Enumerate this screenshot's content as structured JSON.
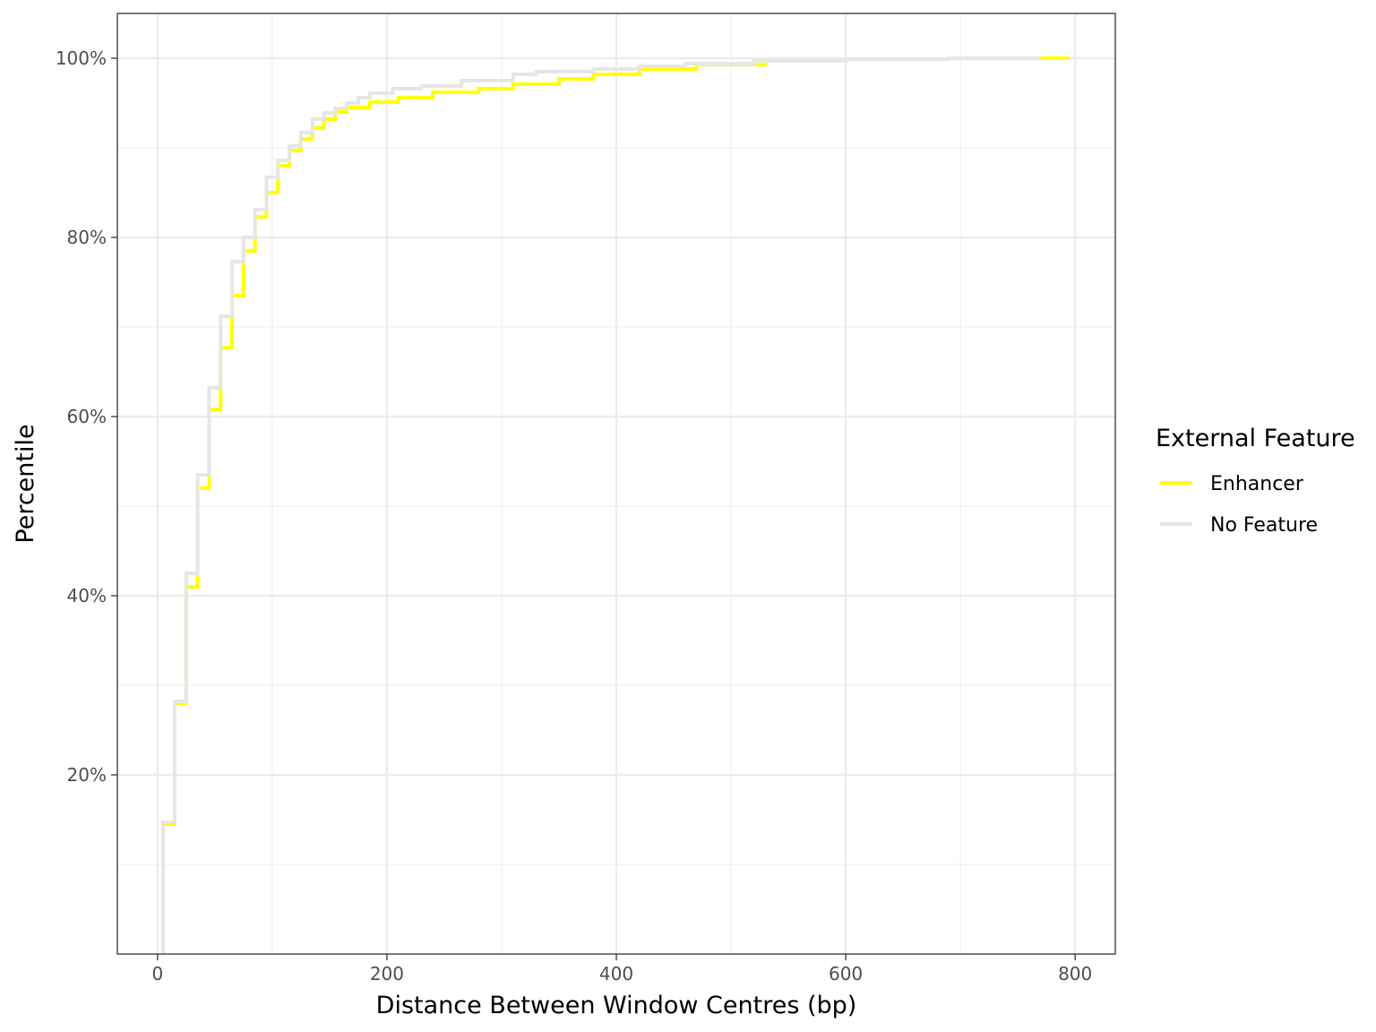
{
  "chart_data": {
    "type": "line",
    "subtype": "step-ecdf",
    "xlabel": "Distance Between Window Centres (bp)",
    "ylabel": "Percentile",
    "xlim": [
      -35,
      835
    ],
    "ylim": [
      0,
      1.05
    ],
    "x_ticks": [
      0,
      200,
      400,
      600,
      800
    ],
    "x_tick_labels": [
      "0",
      "200",
      "400",
      "600",
      "800"
    ],
    "y_ticks": [
      0.2,
      0.4,
      0.6,
      0.8,
      1.0
    ],
    "y_tick_labels": [
      "20%",
      "40%",
      "60%",
      "80%",
      "100%"
    ],
    "grid": true,
    "legend": {
      "title": "External Feature",
      "position": "right"
    },
    "series": [
      {
        "name": "Enhancer",
        "color": "#ffff00",
        "points": [
          [
            5,
            0
          ],
          [
            5,
            0.145
          ],
          [
            15,
            0.145
          ],
          [
            15,
            0.28
          ],
          [
            25,
            0.28
          ],
          [
            25,
            0.41
          ],
          [
            35,
            0.41
          ],
          [
            35,
            0.52
          ],
          [
            45,
            0.52
          ],
          [
            45,
            0.608
          ],
          [
            55,
            0.608
          ],
          [
            55,
            0.677
          ],
          [
            65,
            0.677
          ],
          [
            65,
            0.735
          ],
          [
            75,
            0.735
          ],
          [
            75,
            0.785
          ],
          [
            85,
            0.785
          ],
          [
            85,
            0.823
          ],
          [
            95,
            0.823
          ],
          [
            95,
            0.85
          ],
          [
            105,
            0.85
          ],
          [
            105,
            0.88
          ],
          [
            115,
            0.88
          ],
          [
            115,
            0.897
          ],
          [
            125,
            0.897
          ],
          [
            125,
            0.91
          ],
          [
            135,
            0.91
          ],
          [
            135,
            0.922
          ],
          [
            145,
            0.922
          ],
          [
            145,
            0.932
          ],
          [
            155,
            0.932
          ],
          [
            155,
            0.94
          ],
          [
            165,
            0.94
          ],
          [
            165,
            0.945
          ],
          [
            185,
            0.945
          ],
          [
            185,
            0.951
          ],
          [
            210,
            0.951
          ],
          [
            210,
            0.956
          ],
          [
            240,
            0.956
          ],
          [
            240,
            0.962
          ],
          [
            280,
            0.962
          ],
          [
            280,
            0.966
          ],
          [
            310,
            0.966
          ],
          [
            310,
            0.971
          ],
          [
            350,
            0.971
          ],
          [
            350,
            0.977
          ],
          [
            380,
            0.977
          ],
          [
            380,
            0.982
          ],
          [
            420,
            0.982
          ],
          [
            420,
            0.988
          ],
          [
            470,
            0.988
          ],
          [
            470,
            0.993
          ],
          [
            530,
            0.993
          ],
          [
            530,
            0.997
          ],
          [
            600,
            0.997
          ],
          [
            600,
            0.999
          ],
          [
            690,
            0.999
          ],
          [
            690,
            1.0
          ],
          [
            795,
            1.0
          ]
        ]
      },
      {
        "name": "No Feature",
        "color": "#e6e6e6",
        "points": [
          [
            5,
            0
          ],
          [
            5,
            0.147
          ],
          [
            15,
            0.147
          ],
          [
            15,
            0.282
          ],
          [
            25,
            0.282
          ],
          [
            25,
            0.425
          ],
          [
            35,
            0.425
          ],
          [
            35,
            0.535
          ],
          [
            45,
            0.535
          ],
          [
            45,
            0.632
          ],
          [
            55,
            0.632
          ],
          [
            55,
            0.712
          ],
          [
            65,
            0.712
          ],
          [
            65,
            0.773
          ],
          [
            75,
            0.773
          ],
          [
            75,
            0.8
          ],
          [
            85,
            0.8
          ],
          [
            85,
            0.831
          ],
          [
            95,
            0.831
          ],
          [
            95,
            0.867
          ],
          [
            105,
            0.867
          ],
          [
            105,
            0.886
          ],
          [
            115,
            0.886
          ],
          [
            115,
            0.902
          ],
          [
            125,
            0.902
          ],
          [
            125,
            0.917
          ],
          [
            135,
            0.917
          ],
          [
            135,
            0.932
          ],
          [
            145,
            0.932
          ],
          [
            145,
            0.939
          ],
          [
            155,
            0.939
          ],
          [
            155,
            0.944
          ],
          [
            165,
            0.944
          ],
          [
            165,
            0.95
          ],
          [
            175,
            0.95
          ],
          [
            175,
            0.956
          ],
          [
            185,
            0.956
          ],
          [
            185,
            0.961
          ],
          [
            205,
            0.961
          ],
          [
            205,
            0.966
          ],
          [
            230,
            0.966
          ],
          [
            230,
            0.969
          ],
          [
            265,
            0.969
          ],
          [
            265,
            0.975
          ],
          [
            310,
            0.975
          ],
          [
            310,
            0.982
          ],
          [
            330,
            0.982
          ],
          [
            330,
            0.985
          ],
          [
            380,
            0.985
          ],
          [
            380,
            0.988
          ],
          [
            420,
            0.988
          ],
          [
            420,
            0.991
          ],
          [
            460,
            0.991
          ],
          [
            460,
            0.994
          ],
          [
            520,
            0.994
          ],
          [
            520,
            0.997
          ],
          [
            600,
            0.997
          ],
          [
            600,
            0.999
          ],
          [
            690,
            0.999
          ],
          [
            690,
            1.0
          ],
          [
            770,
            1.0
          ]
        ]
      }
    ]
  }
}
